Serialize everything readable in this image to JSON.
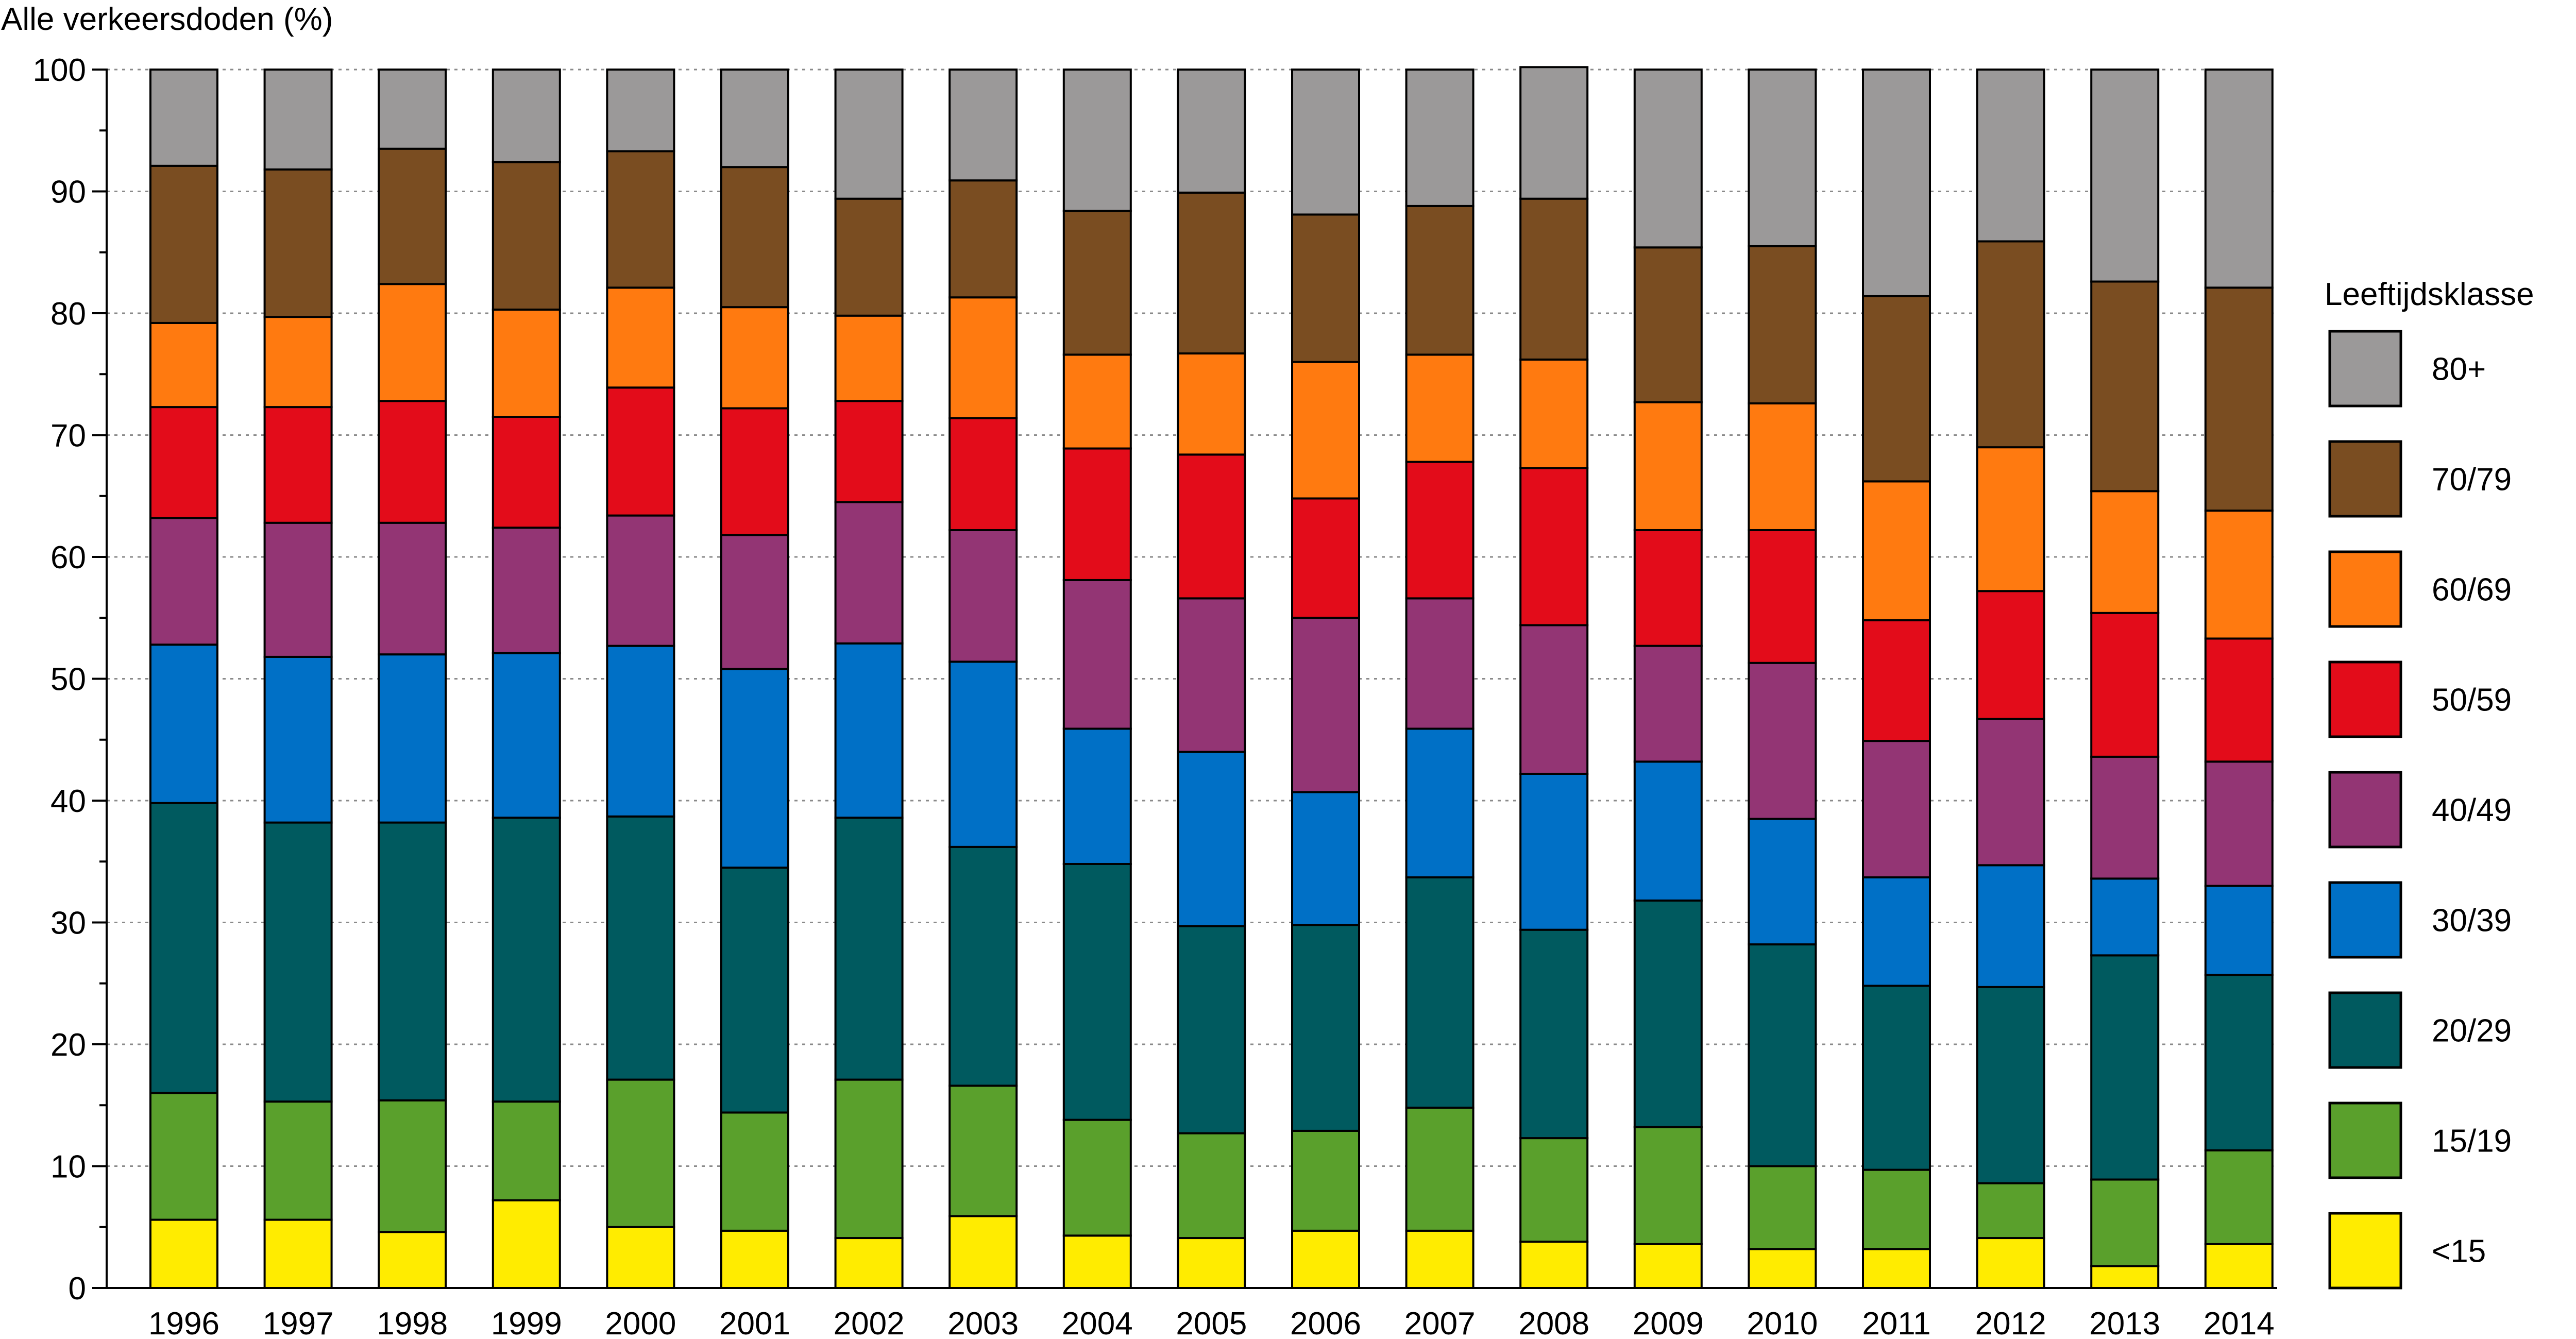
{
  "chart_data": {
    "type": "bar",
    "stacked": true,
    "ylabel": "Alle verkeersdoden (%)",
    "ylim": [
      0,
      100
    ],
    "yticks": [
      0,
      10,
      20,
      30,
      40,
      50,
      60,
      70,
      80,
      90,
      100
    ],
    "grid": "horizontal-dotted",
    "legend_title": "Leeftijdsklasse",
    "legend_position": "right",
    "categories": [
      "1996",
      "1997",
      "1998",
      "1999",
      "2000",
      "2001",
      "2002",
      "2003",
      "2004",
      "2005",
      "2006",
      "2007",
      "2008",
      "2009",
      "2010",
      "2011",
      "2012",
      "2013",
      "2014"
    ],
    "series": [
      {
        "name": "<15",
        "color": "#ffec00",
        "values": [
          5.6,
          5.6,
          4.6,
          7.2,
          5.0,
          4.7,
          4.1,
          5.9,
          4.3,
          4.1,
          4.7,
          4.7,
          3.8,
          3.6,
          3.2,
          3.2,
          4.1,
          1.8,
          3.6
        ]
      },
      {
        "name": "15/19",
        "color": "#5aa02c",
        "values": [
          10.4,
          9.7,
          10.8,
          8.1,
          12.1,
          9.7,
          13.0,
          10.7,
          9.5,
          8.6,
          8.2,
          10.1,
          8.5,
          9.6,
          6.8,
          6.5,
          4.5,
          7.1,
          7.7
        ]
      },
      {
        "name": "20/29",
        "color": "#005a5f",
        "values": [
          23.8,
          22.9,
          22.8,
          23.3,
          21.6,
          20.1,
          21.5,
          19.6,
          21.0,
          17.0,
          16.9,
          18.9,
          17.1,
          18.6,
          18.2,
          15.1,
          16.1,
          18.4,
          14.4
        ]
      },
      {
        "name": "30/39",
        "color": "#0070c6",
        "values": [
          13.0,
          13.6,
          13.8,
          13.5,
          14.0,
          16.3,
          14.3,
          15.2,
          11.1,
          14.3,
          10.9,
          12.2,
          12.8,
          11.4,
          10.3,
          8.9,
          10.0,
          6.3,
          7.3
        ]
      },
      {
        "name": "40/49",
        "color": "#933574",
        "values": [
          10.4,
          11.0,
          10.8,
          10.3,
          10.7,
          11.0,
          11.6,
          10.8,
          12.2,
          12.6,
          14.3,
          10.7,
          12.2,
          9.5,
          12.8,
          11.2,
          12.0,
          10.0,
          10.2
        ]
      },
      {
        "name": "50/59",
        "color": "#e30c1a",
        "values": [
          9.1,
          9.5,
          10.0,
          9.1,
          10.5,
          10.4,
          8.3,
          9.2,
          10.8,
          11.8,
          9.8,
          11.2,
          12.9,
          9.5,
          10.9,
          9.9,
          10.5,
          11.8,
          10.1
        ]
      },
      {
        "name": "60/69",
        "color": "#ff7a10",
        "values": [
          6.9,
          7.4,
          9.6,
          8.8,
          8.2,
          8.3,
          7.0,
          9.9,
          7.7,
          8.3,
          11.2,
          8.8,
          8.9,
          10.5,
          10.4,
          11.4,
          11.8,
          10.0,
          10.5
        ]
      },
      {
        "name": "70/79",
        "color": "#7a4d21",
        "values": [
          12.9,
          12.1,
          11.1,
          12.1,
          11.2,
          11.5,
          9.6,
          9.6,
          11.8,
          13.2,
          12.1,
          12.2,
          13.2,
          12.7,
          12.9,
          15.2,
          16.9,
          17.2,
          18.3
        ]
      },
      {
        "name": "80+",
        "color": "#9b9999",
        "values": [
          7.9,
          8.2,
          6.5,
          7.6,
          6.7,
          8.0,
          10.6,
          9.1,
          11.6,
          10.1,
          11.9,
          11.2,
          10.8,
          14.6,
          14.5,
          18.6,
          14.1,
          17.4,
          17.9
        ]
      }
    ]
  }
}
